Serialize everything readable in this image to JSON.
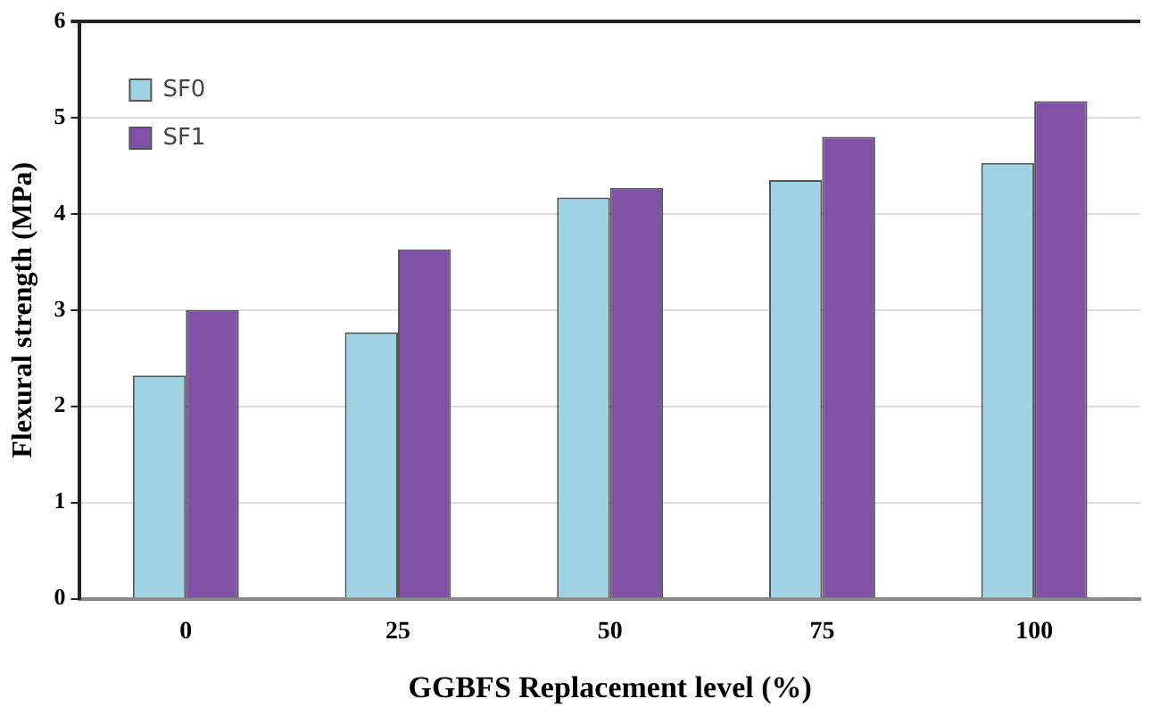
{
  "chart_data": {
    "type": "bar",
    "xlabel": "GGBFS Replacement level (%)",
    "ylabel": "Flexural strength (MPa)",
    "categories": [
      "0",
      "25",
      "50",
      "75",
      "100"
    ],
    "series": [
      {
        "name": "SF0",
        "color": "#9fd3e4",
        "values": [
          2.32,
          2.77,
          4.17,
          4.35,
          4.53
        ]
      },
      {
        "name": "SF1",
        "color": "#7f52a8",
        "values": [
          3.0,
          3.63,
          4.27,
          4.8,
          5.17
        ]
      }
    ],
    "ylim": [
      0,
      6
    ],
    "yticks": [
      0,
      1,
      2,
      3,
      4,
      5,
      6
    ],
    "grid": "y",
    "legend": "top left"
  }
}
